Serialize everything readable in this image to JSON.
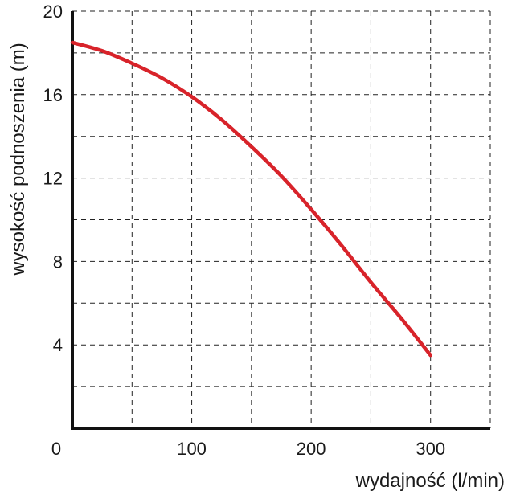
{
  "chart_data": {
    "type": "line",
    "xlabel": "wydajność (l/min)",
    "ylabel": "wysokość podnoszenia (m)",
    "xlim": [
      0,
      350
    ],
    "ylim": [
      0,
      20
    ],
    "x_ticks": [
      0,
      100,
      200,
      300
    ],
    "y_ticks": [
      4,
      8,
      12,
      16,
      20
    ],
    "x_tick_labels": [
      "0",
      "100",
      "200",
      "300"
    ],
    "y_tick_labels": [
      "4",
      "8",
      "12",
      "16",
      "20"
    ],
    "x_grid_step": 50,
    "y_grid_step": 2,
    "grid": true,
    "grid_style": "dashed",
    "series": [
      {
        "color": "#d8232a",
        "x": [
          0,
          25,
          50,
          75,
          100,
          125,
          150,
          175,
          200,
          225,
          250,
          275,
          300
        ],
        "y": [
          18.5,
          18.1,
          17.5,
          16.8,
          15.9,
          14.8,
          13.5,
          12.1,
          10.5,
          8.8,
          7.0,
          5.3,
          3.5
        ]
      }
    ]
  }
}
